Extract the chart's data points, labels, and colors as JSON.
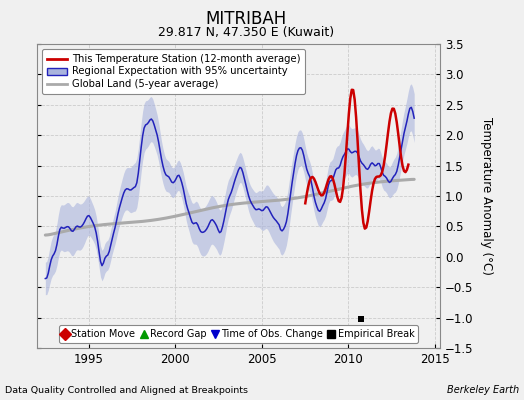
{
  "title": "MITRIBAH",
  "subtitle": "29.817 N, 47.350 E (Kuwait)",
  "ylabel": "Temperature Anomaly (°C)",
  "xlabel_left": "Data Quality Controlled and Aligned at Breakpoints",
  "xlabel_right": "Berkeley Earth",
  "ylim": [
    -1.5,
    3.5
  ],
  "xlim": [
    1992.0,
    2015.3
  ],
  "xticks": [
    1995,
    2000,
    2005,
    2010,
    2015
  ],
  "yticks": [
    -1.5,
    -1.0,
    -0.5,
    0.0,
    0.5,
    1.0,
    1.5,
    2.0,
    2.5,
    3.0,
    3.5
  ],
  "fig_bg_color": "#f0f0f0",
  "plot_bg_color": "#f0f0f0",
  "grid_color": "#cccccc",
  "empirical_break_x": 2010.7,
  "empirical_break_y": -1.03,
  "legend_labels": [
    "This Temperature Station (12-month average)",
    "Regional Expectation with 95% uncertainty",
    "Global Land (5-year average)"
  ],
  "bottom_legend": [
    "Station Move",
    "Record Gap",
    "Time of Obs. Change",
    "Empirical Break"
  ],
  "bottom_legend_colors": [
    "#cc0000",
    "#009900",
    "#0000cc",
    "#000000"
  ],
  "bottom_legend_markers": [
    "D",
    "^",
    "v",
    "s"
  ],
  "regional_color": "#2222bb",
  "regional_fill_color": "#aab4dd",
  "station_color": "#cc0000",
  "global_color": "#aaaaaa"
}
